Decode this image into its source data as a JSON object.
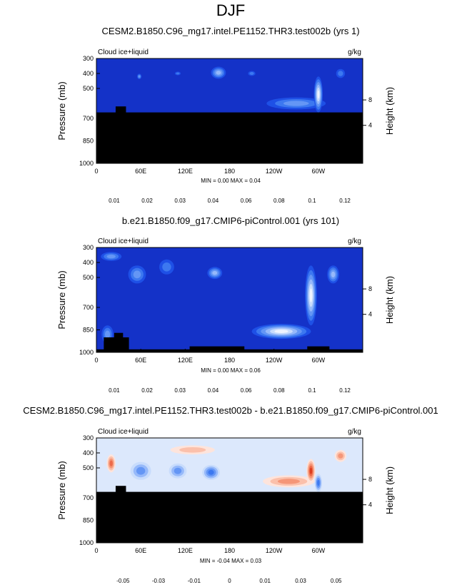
{
  "figure": {
    "title": "DJF"
  },
  "chart_data": [
    {
      "type": "heatmap",
      "title": "CESM2.B1850.C96_mg17.intel.PE1152.THR3.test002b (yrs 1)",
      "left_label": "Cloud ice+liquid",
      "units": "g/kg",
      "xlabel": "",
      "ylabel": "Pressure (mb)",
      "y2label": "Height (km)",
      "xticks": [
        "0",
        "60E",
        "120E",
        "180",
        "120W",
        "60W"
      ],
      "xtick_values": [
        0,
        60,
        120,
        180,
        240,
        300
      ],
      "xlim": [
        0,
        360
      ],
      "yticks": [
        "300",
        "400",
        "500",
        "700",
        "850",
        "1000"
      ],
      "ytick_values": [
        300,
        400,
        500,
        700,
        850,
        1000
      ],
      "ylim": [
        300,
        1000
      ],
      "y2ticks": [
        "8",
        "4"
      ],
      "y2tick_values": [
        8,
        4
      ],
      "mask_top_mb": 660,
      "minmax": "MIN =   0.00  MAX =   0.04",
      "colorbar": {
        "labels": [
          "0.01",
          "0.02",
          "0.03",
          "0.04",
          "0.06",
          "0.08",
          "0.1",
          "0.12"
        ],
        "colors": [
          "#0a14a0",
          "#1432c8",
          "#1e50e6",
          "#3c78f0",
          "#6496f5",
          "#96b9fa",
          "#c8dcfc",
          "#eef3fe",
          "#fde4dc",
          "#fbc0ab",
          "#f59678",
          "#ec6a4a",
          "#dc3c1e",
          "#be1e0c",
          "#8c0000"
        ]
      },
      "features": [
        {
          "x": 58,
          "p": 420,
          "rx": 3,
          "rp": 18,
          "level": 4
        },
        {
          "x": 110,
          "p": 400,
          "rx": 4,
          "rp": 12,
          "level": 3
        },
        {
          "x": 165,
          "p": 395,
          "rx": 10,
          "rp": 40,
          "level": 5
        },
        {
          "x": 210,
          "p": 400,
          "rx": 5,
          "rp": 16,
          "level": 3
        },
        {
          "x": 270,
          "p": 600,
          "rx": 40,
          "rp": 40,
          "level": 4
        },
        {
          "x": 300,
          "p": 540,
          "rx": 6,
          "rp": 120,
          "level": 7
        },
        {
          "x": 330,
          "p": 400,
          "rx": 6,
          "rp": 30,
          "level": 3
        }
      ]
    },
    {
      "type": "heatmap",
      "title": "b.e21.B1850.f09_g17.CMIP6-piControl.001 (yrs 101)",
      "left_label": "Cloud ice+liquid",
      "units": "g/kg",
      "xlabel": "",
      "ylabel": "Pressure (mb)",
      "y2label": "Height (km)",
      "xticks": [
        "0",
        "60E",
        "120E",
        "180",
        "120W",
        "60W"
      ],
      "xtick_values": [
        0,
        60,
        120,
        180,
        240,
        300
      ],
      "xlim": [
        0,
        360
      ],
      "yticks": [
        "300",
        "400",
        "500",
        "700",
        "850",
        "1000"
      ],
      "ytick_values": [
        300,
        400,
        500,
        700,
        850,
        1000
      ],
      "ylim": [
        300,
        1000
      ],
      "y2ticks": [
        "8",
        "4"
      ],
      "y2tick_values": [
        8,
        4
      ],
      "mask_top_mb": 980,
      "minmax": "MIN =   0.00  MAX =   0.06",
      "colorbar": {
        "labels": [
          "0.01",
          "0.02",
          "0.03",
          "0.04",
          "0.06",
          "0.08",
          "0.1",
          "0.12"
        ],
        "colors": [
          "#0a14a0",
          "#1432c8",
          "#1e50e6",
          "#3c78f0",
          "#6496f5",
          "#96b9fa",
          "#c8dcfc",
          "#eef3fe",
          "#fde4dc",
          "#fbc0ab",
          "#f59678",
          "#ec6a4a",
          "#dc3c1e",
          "#be1e0c",
          "#8c0000"
        ]
      },
      "features": [
        {
          "x": 20,
          "p": 360,
          "rx": 14,
          "rp": 30,
          "level": 4
        },
        {
          "x": 55,
          "p": 480,
          "rx": 12,
          "rp": 60,
          "level": 4
        },
        {
          "x": 95,
          "p": 430,
          "rx": 10,
          "rp": 50,
          "level": 3
        },
        {
          "x": 160,
          "p": 470,
          "rx": 10,
          "rp": 40,
          "level": 5
        },
        {
          "x": 250,
          "p": 860,
          "rx": 40,
          "rp": 50,
          "level": 7
        },
        {
          "x": 290,
          "p": 620,
          "rx": 8,
          "rp": 200,
          "level": 7
        },
        {
          "x": 320,
          "p": 480,
          "rx": 8,
          "rp": 60,
          "level": 5
        },
        {
          "x": 15,
          "p": 880,
          "rx": 8,
          "rp": 60,
          "level": 4
        }
      ]
    },
    {
      "type": "heatmap",
      "title": "CESM2.B1850.C96_mg17.intel.PE1152.THR3.test002b - b.e21.B1850.f09_g17.CMIP6-piControl.001",
      "left_label": "Cloud ice+liquid",
      "units": "g/kg",
      "xlabel": "",
      "ylabel": "Pressure (mb)",
      "y2label": "Height (km)",
      "xticks": [
        "0",
        "60E",
        "120E",
        "180",
        "120W",
        "60W"
      ],
      "xtick_values": [
        0,
        60,
        120,
        180,
        240,
        300
      ],
      "xlim": [
        0,
        360
      ],
      "yticks": [
        "300",
        "400",
        "500",
        "700",
        "850",
        "1000"
      ],
      "ytick_values": [
        300,
        400,
        500,
        700,
        850,
        1000
      ],
      "ylim": [
        300,
        1000
      ],
      "y2ticks": [
        "8",
        "4"
      ],
      "y2tick_values": [
        8,
        4
      ],
      "mask_top_mb": 660,
      "minmax": "MIN =  -0.04  MAX =   0.03",
      "colorbar": {
        "labels": [
          "-0.05",
          "-0.03",
          "-0.01",
          "0",
          "0.01",
          "0.03",
          "0.05"
        ],
        "colors": [
          "#0a14a0",
          "#1432c8",
          "#1e50e6",
          "#3c78f0",
          "#6496f5",
          "#96b9fa",
          "#c8dcfc",
          "#dce8fc",
          "#fde4dc",
          "#fbc0ab",
          "#f59678",
          "#ec6a4a",
          "#dc3c1e",
          "#be1e0c",
          "#8c0000"
        ]
      },
      "features": [
        {
          "x": 20,
          "p": 470,
          "rx": 6,
          "rp": 60,
          "level": 11
        },
        {
          "x": 60,
          "p": 520,
          "rx": 14,
          "rp": 60,
          "level": 4
        },
        {
          "x": 110,
          "p": 520,
          "rx": 12,
          "rp": 50,
          "level": 4
        },
        {
          "x": 155,
          "p": 530,
          "rx": 12,
          "rp": 50,
          "level": 3
        },
        {
          "x": 130,
          "p": 380,
          "rx": 30,
          "rp": 30,
          "level": 9
        },
        {
          "x": 260,
          "p": 590,
          "rx": 35,
          "rp": 40,
          "level": 10
        },
        {
          "x": 290,
          "p": 520,
          "rx": 6,
          "rp": 80,
          "level": 12
        },
        {
          "x": 300,
          "p": 600,
          "rx": 5,
          "rp": 60,
          "level": 3
        },
        {
          "x": 330,
          "p": 420,
          "rx": 8,
          "rp": 40,
          "level": 10
        }
      ]
    }
  ]
}
